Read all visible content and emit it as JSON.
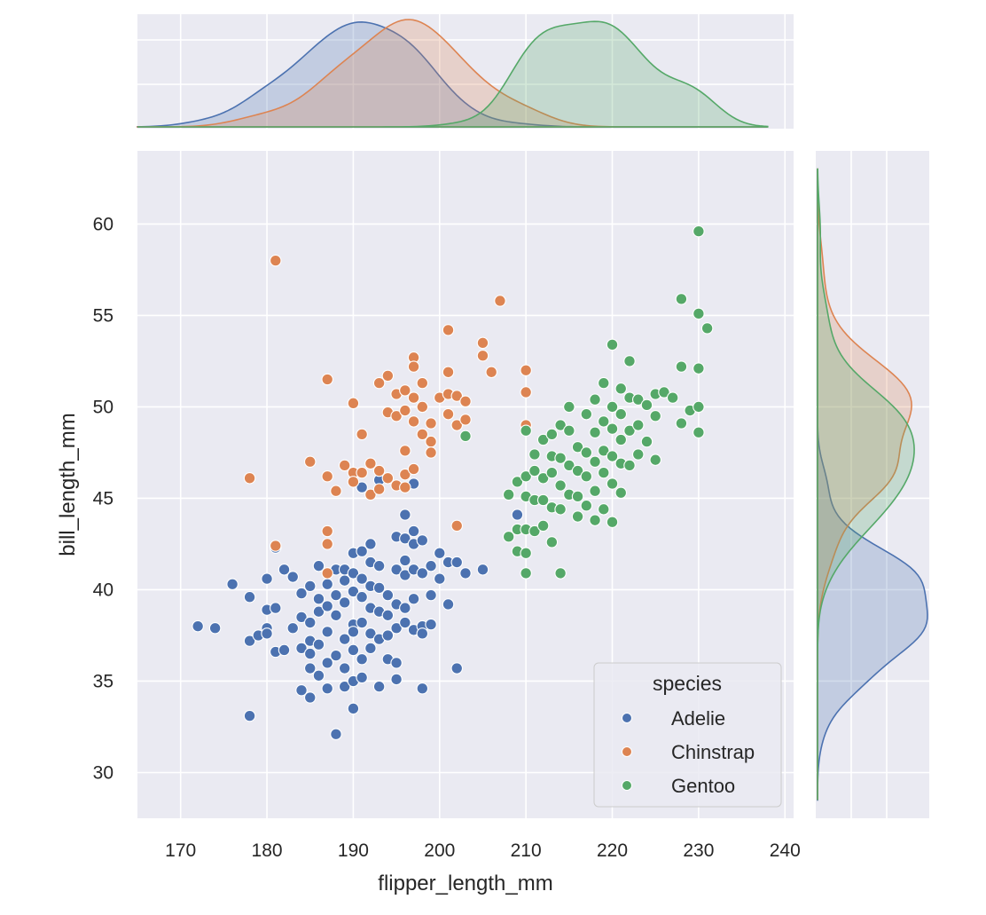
{
  "chart_data": {
    "type": "scatter",
    "kind": "jointplot",
    "xlabel": "flipper_length_mm",
    "ylabel": "bill_length_mm",
    "xlim": [
      165,
      241
    ],
    "ylim": [
      27.5,
      64
    ],
    "xticks": [
      "170",
      "180",
      "190",
      "200",
      "210",
      "220",
      "230",
      "240"
    ],
    "yticks": [
      "30",
      "35",
      "40",
      "45",
      "50",
      "55",
      "60"
    ],
    "grid": true,
    "legend": {
      "title": "species",
      "placement": "lower-right",
      "entries": [
        "Adelie",
        "Chinstrap",
        "Gentoo"
      ]
    },
    "colors": {
      "Adelie": "#4c72b0",
      "Chinstrap": "#dd8452",
      "Gentoo": "#55a868"
    },
    "series": [
      {
        "name": "Adelie",
        "points": [
          [
            172,
            38.0
          ],
          [
            174,
            37.9
          ],
          [
            176,
            40.3
          ],
          [
            178,
            39.6
          ],
          [
            178,
            37.2
          ],
          [
            178,
            33.1
          ],
          [
            179,
            37.5
          ],
          [
            180,
            40.6
          ],
          [
            180,
            38.9
          ],
          [
            180,
            37.9
          ],
          [
            180,
            37.6
          ],
          [
            181,
            42.3
          ],
          [
            181,
            39.0
          ],
          [
            181,
            36.6
          ],
          [
            182,
            41.1
          ],
          [
            182,
            36.7
          ],
          [
            183,
            40.7
          ],
          [
            183,
            37.9
          ],
          [
            184,
            39.8
          ],
          [
            184,
            38.5
          ],
          [
            184,
            36.8
          ],
          [
            184,
            34.5
          ],
          [
            185,
            40.2
          ],
          [
            185,
            38.2
          ],
          [
            185,
            37.2
          ],
          [
            185,
            36.5
          ],
          [
            185,
            35.7
          ],
          [
            185,
            34.1
          ],
          [
            186,
            41.3
          ],
          [
            186,
            39.5
          ],
          [
            186,
            38.8
          ],
          [
            186,
            37.0
          ],
          [
            186,
            35.3
          ],
          [
            187,
            40.3
          ],
          [
            187,
            39.1
          ],
          [
            187,
            37.7
          ],
          [
            187,
            36.0
          ],
          [
            187,
            34.6
          ],
          [
            188,
            41.1
          ],
          [
            188,
            39.7
          ],
          [
            188,
            38.6
          ],
          [
            188,
            36.4
          ],
          [
            188,
            32.1
          ],
          [
            189,
            41.1
          ],
          [
            189,
            40.5
          ],
          [
            189,
            39.3
          ],
          [
            189,
            37.3
          ],
          [
            189,
            35.7
          ],
          [
            189,
            34.7
          ],
          [
            190,
            42.0
          ],
          [
            190,
            40.9
          ],
          [
            190,
            39.9
          ],
          [
            190,
            38.1
          ],
          [
            190,
            37.7
          ],
          [
            190,
            36.7
          ],
          [
            190,
            35.0
          ],
          [
            190,
            33.5
          ],
          [
            191,
            42.1
          ],
          [
            191,
            40.6
          ],
          [
            191,
            39.6
          ],
          [
            191,
            38.2
          ],
          [
            191,
            36.2
          ],
          [
            191,
            35.2
          ],
          [
            192,
            42.5
          ],
          [
            192,
            41.5
          ],
          [
            192,
            40.2
          ],
          [
            192,
            39.0
          ],
          [
            192,
            37.6
          ],
          [
            192,
            36.8
          ],
          [
            193,
            41.3
          ],
          [
            193,
            40.1
          ],
          [
            193,
            38.8
          ],
          [
            193,
            37.3
          ],
          [
            193,
            34.7
          ],
          [
            194,
            39.7
          ],
          [
            194,
            38.6
          ],
          [
            194,
            37.5
          ],
          [
            194,
            36.2
          ],
          [
            195,
            42.9
          ],
          [
            195,
            41.1
          ],
          [
            195,
            39.2
          ],
          [
            195,
            37.9
          ],
          [
            195,
            36.0
          ],
          [
            195,
            35.1
          ],
          [
            196,
            44.1
          ],
          [
            196,
            42.8
          ],
          [
            196,
            41.6
          ],
          [
            196,
            40.8
          ],
          [
            196,
            39.0
          ],
          [
            196,
            38.2
          ],
          [
            197,
            43.2
          ],
          [
            197,
            42.5
          ],
          [
            197,
            41.1
          ],
          [
            197,
            39.5
          ],
          [
            197,
            37.8
          ],
          [
            198,
            42.7
          ],
          [
            198,
            40.9
          ],
          [
            198,
            38.0
          ],
          [
            198,
            37.6
          ],
          [
            198,
            34.6
          ],
          [
            199,
            41.3
          ],
          [
            199,
            39.7
          ],
          [
            199,
            38.1
          ],
          [
            200,
            42.0
          ],
          [
            200,
            40.6
          ],
          [
            201,
            41.5
          ],
          [
            201,
            39.2
          ],
          [
            202,
            41.5
          ],
          [
            202,
            35.7
          ],
          [
            203,
            40.9
          ],
          [
            205,
            41.1
          ],
          [
            209,
            44.1
          ],
          [
            193,
            46.0
          ],
          [
            197,
            45.8
          ],
          [
            191,
            45.6
          ]
        ]
      },
      {
        "name": "Chinstrap",
        "points": [
          [
            178,
            46.1
          ],
          [
            181,
            58.0
          ],
          [
            181,
            42.4
          ],
          [
            185,
            47.0
          ],
          [
            187,
            51.5
          ],
          [
            187,
            46.2
          ],
          [
            187,
            43.2
          ],
          [
            187,
            42.5
          ],
          [
            187,
            40.9
          ],
          [
            188,
            45.4
          ],
          [
            189,
            46.8
          ],
          [
            190,
            50.2
          ],
          [
            190,
            46.4
          ],
          [
            190,
            45.9
          ],
          [
            191,
            48.5
          ],
          [
            191,
            46.4
          ],
          [
            192,
            46.9
          ],
          [
            192,
            45.2
          ],
          [
            193,
            51.3
          ],
          [
            193,
            46.5
          ],
          [
            193,
            45.5
          ],
          [
            194,
            51.7
          ],
          [
            194,
            49.7
          ],
          [
            194,
            46.1
          ],
          [
            195,
            50.7
          ],
          [
            195,
            49.5
          ],
          [
            195,
            45.7
          ],
          [
            196,
            50.9
          ],
          [
            196,
            49.8
          ],
          [
            196,
            47.6
          ],
          [
            196,
            46.3
          ],
          [
            196,
            45.6
          ],
          [
            197,
            52.7
          ],
          [
            197,
            52.2
          ],
          [
            197,
            50.5
          ],
          [
            197,
            49.2
          ],
          [
            197,
            46.6
          ],
          [
            198,
            51.3
          ],
          [
            198,
            50.0
          ],
          [
            198,
            48.5
          ],
          [
            199,
            49.1
          ],
          [
            199,
            48.1
          ],
          [
            199,
            47.5
          ],
          [
            200,
            50.5
          ],
          [
            201,
            54.2
          ],
          [
            201,
            51.9
          ],
          [
            201,
            50.7
          ],
          [
            201,
            49.6
          ],
          [
            202,
            50.6
          ],
          [
            202,
            49.0
          ],
          [
            202,
            43.5
          ],
          [
            203,
            50.3
          ],
          [
            203,
            49.3
          ],
          [
            205,
            53.5
          ],
          [
            205,
            52.8
          ],
          [
            206,
            51.9
          ],
          [
            207,
            55.8
          ],
          [
            210,
            52.0
          ],
          [
            210,
            50.8
          ],
          [
            210,
            49.0
          ]
        ]
      },
      {
        "name": "Gentoo",
        "points": [
          [
            203,
            48.4
          ],
          [
            208,
            45.2
          ],
          [
            208,
            42.9
          ],
          [
            209,
            45.9
          ],
          [
            209,
            43.3
          ],
          [
            209,
            42.1
          ],
          [
            210,
            48.7
          ],
          [
            210,
            46.2
          ],
          [
            210,
            45.1
          ],
          [
            210,
            43.3
          ],
          [
            210,
            42.0
          ],
          [
            210,
            40.9
          ],
          [
            211,
            47.4
          ],
          [
            211,
            46.5
          ],
          [
            211,
            44.9
          ],
          [
            211,
            43.2
          ],
          [
            212,
            48.2
          ],
          [
            212,
            46.1
          ],
          [
            212,
            44.9
          ],
          [
            212,
            43.5
          ],
          [
            213,
            48.5
          ],
          [
            213,
            47.3
          ],
          [
            213,
            46.4
          ],
          [
            213,
            44.5
          ],
          [
            213,
            42.6
          ],
          [
            214,
            49.0
          ],
          [
            214,
            47.2
          ],
          [
            214,
            45.7
          ],
          [
            214,
            44.4
          ],
          [
            214,
            40.9
          ],
          [
            215,
            50.0
          ],
          [
            215,
            48.7
          ],
          [
            215,
            46.8
          ],
          [
            215,
            45.2
          ],
          [
            216,
            47.8
          ],
          [
            216,
            46.5
          ],
          [
            216,
            45.1
          ],
          [
            216,
            44.0
          ],
          [
            217,
            49.6
          ],
          [
            217,
            47.5
          ],
          [
            217,
            46.2
          ],
          [
            217,
            44.6
          ],
          [
            218,
            50.4
          ],
          [
            218,
            48.6
          ],
          [
            218,
            47.0
          ],
          [
            218,
            45.4
          ],
          [
            218,
            43.8
          ],
          [
            219,
            51.3
          ],
          [
            219,
            49.2
          ],
          [
            219,
            47.6
          ],
          [
            219,
            46.4
          ],
          [
            219,
            44.4
          ],
          [
            220,
            53.4
          ],
          [
            220,
            50.0
          ],
          [
            220,
            48.8
          ],
          [
            220,
            47.3
          ],
          [
            220,
            45.8
          ],
          [
            220,
            43.7
          ],
          [
            221,
            51.0
          ],
          [
            221,
            49.6
          ],
          [
            221,
            48.2
          ],
          [
            221,
            46.9
          ],
          [
            221,
            45.3
          ],
          [
            222,
            52.5
          ],
          [
            222,
            50.5
          ],
          [
            222,
            48.7
          ],
          [
            222,
            46.8
          ],
          [
            223,
            50.4
          ],
          [
            223,
            49.0
          ],
          [
            223,
            47.4
          ],
          [
            224,
            50.1
          ],
          [
            224,
            48.1
          ],
          [
            225,
            50.7
          ],
          [
            225,
            49.5
          ],
          [
            225,
            47.1
          ],
          [
            226,
            50.8
          ],
          [
            227,
            50.5
          ],
          [
            228,
            55.9
          ],
          [
            228,
            52.2
          ],
          [
            228,
            49.1
          ],
          [
            229,
            49.8
          ],
          [
            230,
            59.6
          ],
          [
            230,
            55.1
          ],
          [
            230,
            52.1
          ],
          [
            230,
            50.0
          ],
          [
            230,
            48.6
          ],
          [
            231,
            54.3
          ]
        ]
      }
    ]
  }
}
